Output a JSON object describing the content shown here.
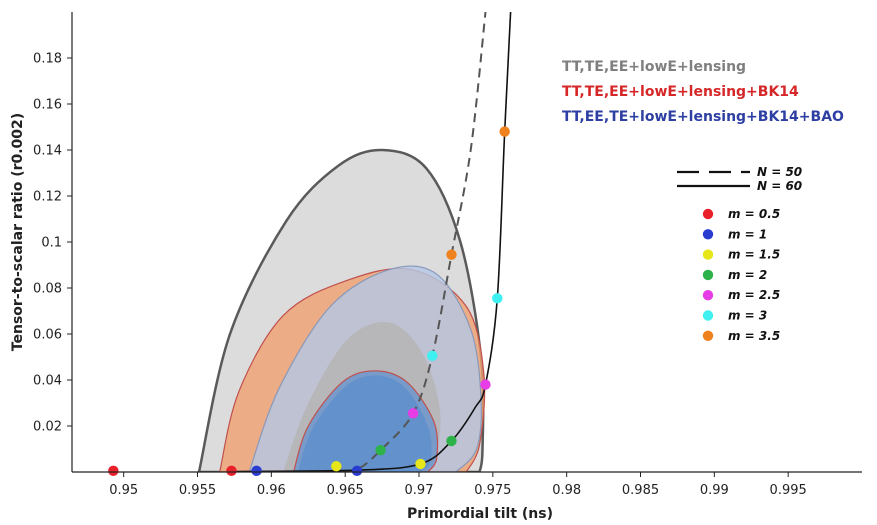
{
  "chart_data": {
    "type": "scatter",
    "xlabel": "Primordial tilt (ns)",
    "ylabel": "Tensor-to-scalar ratio (r0.002)",
    "xlim": [
      0.9465,
      1.0
    ],
    "ylim": [
      0,
      0.2
    ],
    "xticks": [
      "0.95",
      "0.955",
      "0.96",
      "0.965",
      "0.97",
      "0.975",
      "0.98",
      "0.985",
      "0.99",
      "0.995"
    ],
    "xtick_values": [
      0.95,
      0.955,
      0.96,
      0.965,
      0.97,
      0.975,
      0.98,
      0.985,
      0.99,
      0.995
    ],
    "yticks": [
      "0.02",
      "0.04",
      "0.06",
      "0.08",
      "0.1",
      "0.12",
      "0.14",
      "0.16",
      "0.18"
    ],
    "ytick_values": [
      0.02,
      0.04,
      0.06,
      0.08,
      0.1,
      0.12,
      0.14,
      0.16,
      0.18
    ],
    "constraint_legend": [
      {
        "label": "TT,TE,EE+lowE+lensing",
        "color": "#7f7f7f"
      },
      {
        "label": "TT,TE,EE+lowE+lensing+BK14",
        "color": "#d62728"
      },
      {
        "label": "TT,EE,TE+lowE+lensing+BK14+BAO",
        "color": "#2e3fa3"
      }
    ],
    "line_legend": [
      {
        "label": "N = 50",
        "style": "dashed"
      },
      {
        "label": "N = 60",
        "style": "solid"
      }
    ],
    "model_points": [
      {
        "label": "m = 0.5",
        "color": "#e8202a",
        "n50": [
          0.9493,
          0.0005
        ],
        "n60": [
          0.9573,
          0.0005
        ]
      },
      {
        "label": "m = 1",
        "color": "#2a3bd0",
        "n50": [
          0.959,
          0.0005
        ],
        "n60": [
          0.9658,
          0.0005
        ]
      },
      {
        "label": "m = 1.5",
        "color": "#e6e619",
        "n50": [
          0.9644,
          0.0025
        ],
        "n60": [
          0.9701,
          0.0035
        ]
      },
      {
        "label": "m = 2",
        "color": "#2db34a",
        "n50": [
          0.9674,
          0.0095
        ],
        "n60": [
          0.9722,
          0.0135
        ]
      },
      {
        "label": "m = 2.5",
        "color": "#e63de6",
        "n50": [
          0.9696,
          0.0255
        ],
        "n60": [
          0.9745,
          0.038
        ]
      },
      {
        "label": "m = 3",
        "color": "#3ef0f0",
        "n50": [
          0.9709,
          0.0505
        ],
        "n60": [
          0.9753,
          0.0755
        ]
      },
      {
        "label": "m = 3.5",
        "color": "#f0821e",
        "n50": [
          0.9722,
          0.0945
        ],
        "n60": [
          0.9758,
          0.148
        ]
      }
    ],
    "n60_curve": [
      [
        0.957,
        0.0002
      ],
      [
        0.9658,
        0.0008
      ],
      [
        0.9701,
        0.0035
      ],
      [
        0.9722,
        0.0135
      ],
      [
        0.9738,
        0.028
      ],
      [
        0.9745,
        0.038
      ],
      [
        0.9753,
        0.0755
      ],
      [
        0.9758,
        0.148
      ],
      [
        0.9762,
        0.2
      ]
    ],
    "n50_curve": [
      [
        0.964,
        0.0005
      ],
      [
        0.9658,
        0.0012
      ],
      [
        0.9674,
        0.0095
      ],
      [
        0.9696,
        0.0255
      ],
      [
        0.9709,
        0.0505
      ],
      [
        0.9722,
        0.0945
      ],
      [
        0.9735,
        0.14
      ],
      [
        0.9745,
        0.2
      ]
    ],
    "regions": [
      {
        "name": "TT,TE,EE+lowE+lensing",
        "fill": "#d3d3d3",
        "stroke": "#5a5a5a",
        "points": [
          [
            0.9551,
            0
          ],
          [
            0.9572,
            0.06
          ],
          [
            0.961,
            0.109
          ],
          [
            0.9645,
            0.133
          ],
          [
            0.9675,
            0.14
          ],
          [
            0.9705,
            0.132
          ],
          [
            0.9728,
            0.1
          ],
          [
            0.9742,
            0.05
          ],
          [
            0.9743,
            0.01
          ],
          [
            0.9741,
            0
          ]
        ]
      },
      {
        "name": "TT,TE,EE+lowE+lensing+BK14",
        "fill": "#f0a070",
        "stroke": "#c0504d",
        "points": [
          [
            0.9565,
            0
          ],
          [
            0.9578,
            0.035
          ],
          [
            0.9608,
            0.068
          ],
          [
            0.965,
            0.083
          ],
          [
            0.9695,
            0.088
          ],
          [
            0.9732,
            0.072
          ],
          [
            0.9744,
            0.042
          ],
          [
            0.9741,
            0.012
          ],
          [
            0.9732,
            0
          ]
        ]
      },
      {
        "name": "TT,EE,TE+lowE+lensing+BK14+BAO",
        "fill": "#b4c8e6",
        "stroke": "#8899bb",
        "points": [
          [
            0.9585,
            0
          ],
          [
            0.9605,
            0.036
          ],
          [
            0.964,
            0.072
          ],
          [
            0.968,
            0.088
          ],
          [
            0.9712,
            0.086
          ],
          [
            0.9735,
            0.062
          ],
          [
            0.9742,
            0.032
          ],
          [
            0.9739,
            0.01
          ],
          [
            0.9725,
            0
          ]
        ]
      },
      {
        "name": "TT,TE,EE+lowE+lensing inner",
        "fill": "#b5b5b5",
        "stroke": "none",
        "points": [
          [
            0.9608,
            0
          ],
          [
            0.9625,
            0.03
          ],
          [
            0.9652,
            0.058
          ],
          [
            0.968,
            0.065
          ],
          [
            0.9702,
            0.052
          ],
          [
            0.9714,
            0.028
          ],
          [
            0.9712,
            0.008
          ],
          [
            0.9705,
            0
          ]
        ]
      },
      {
        "name": "TT,TE,EE+lowE+lensing+BK14 inner",
        "fill": "#6f97cc",
        "stroke": "#c0504d",
        "points": [
          [
            0.9615,
            0
          ],
          [
            0.9625,
            0.02
          ],
          [
            0.9648,
            0.039
          ],
          [
            0.967,
            0.044
          ],
          [
            0.9692,
            0.039
          ],
          [
            0.971,
            0.022
          ],
          [
            0.9712,
            0.006
          ],
          [
            0.9706,
            0
          ]
        ]
      },
      {
        "name": "TT,EE,TE+lowE+lensing+BK14+BAO inner",
        "fill": "#5e8fcc",
        "stroke": "none",
        "points": [
          [
            0.9618,
            0
          ],
          [
            0.9628,
            0.019
          ],
          [
            0.965,
            0.037
          ],
          [
            0.967,
            0.042
          ],
          [
            0.969,
            0.037
          ],
          [
            0.9706,
            0.02
          ],
          [
            0.9708,
            0.005
          ],
          [
            0.9701,
            0
          ]
        ]
      }
    ]
  }
}
